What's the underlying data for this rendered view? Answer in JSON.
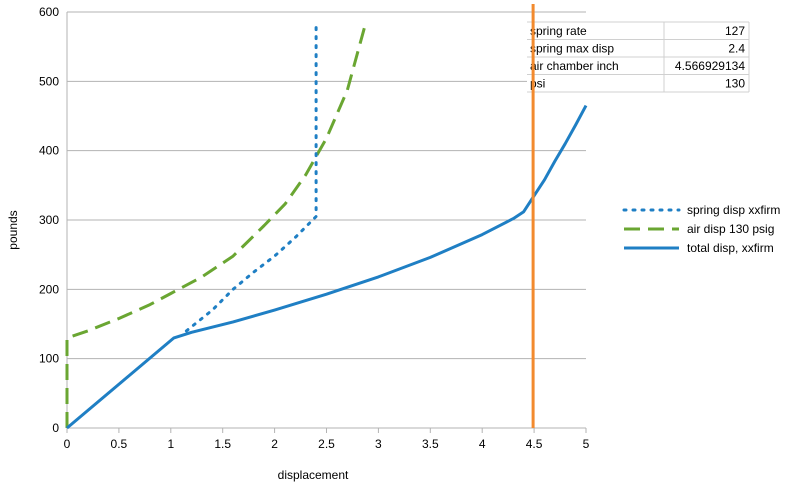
{
  "chart_data": {
    "type": "line",
    "title": "",
    "xlabel": "displacement",
    "ylabel": "pounds",
    "xlim": [
      0,
      5
    ],
    "ylim": [
      0,
      600
    ],
    "x_ticks": [
      "0",
      "0.5",
      "1",
      "1.5",
      "2",
      "2.5",
      "3",
      "3.5",
      "4",
      "4.5",
      "5"
    ],
    "y_ticks": [
      "0",
      "100",
      "200",
      "300",
      "400",
      "500",
      "600"
    ],
    "grid": "horizontal",
    "legend_position": "right",
    "series": [
      {
        "name": "spring disp xxfirm",
        "color": "#1f7fc4",
        "style": "dotted",
        "points": [
          [
            1.15,
            140
          ],
          [
            1.4,
            170
          ],
          [
            1.6,
            200
          ],
          [
            1.8,
            225
          ],
          [
            2.0,
            248
          ],
          [
            2.2,
            275
          ],
          [
            2.4,
            305
          ],
          [
            2.4,
            350
          ],
          [
            2.4,
            400
          ],
          [
            2.4,
            450
          ],
          [
            2.4,
            500
          ],
          [
            2.4,
            580
          ]
        ]
      },
      {
        "name": "air disp 130 psig",
        "color": "#6aa632",
        "style": "dashed",
        "points": [
          [
            0,
            0
          ],
          [
            0,
            30
          ],
          [
            0,
            60
          ],
          [
            0,
            90
          ],
          [
            0,
            130
          ],
          [
            0.2,
            140
          ],
          [
            0.5,
            158
          ],
          [
            0.8,
            178
          ],
          [
            1.0,
            194
          ],
          [
            1.3,
            218
          ],
          [
            1.6,
            248
          ],
          [
            1.9,
            292
          ],
          [
            2.1,
            323
          ],
          [
            2.3,
            365
          ],
          [
            2.5,
            418
          ],
          [
            2.7,
            487
          ],
          [
            2.87,
            580
          ]
        ]
      },
      {
        "name": "total disp, xxfirm",
        "color": "#1f7fc4",
        "style": "solid",
        "points": [
          [
            0,
            0
          ],
          [
            1.03,
            130
          ],
          [
            1.2,
            138
          ],
          [
            1.6,
            153
          ],
          [
            2.0,
            170
          ],
          [
            2.5,
            193
          ],
          [
            3.0,
            218
          ],
          [
            3.5,
            246
          ],
          [
            4.0,
            279
          ],
          [
            4.3,
            302
          ],
          [
            4.4,
            312
          ],
          [
            4.5,
            335
          ],
          [
            4.6,
            358
          ],
          [
            4.7,
            385
          ],
          [
            4.8,
            410
          ],
          [
            4.9,
            437
          ],
          [
            5.0,
            465
          ]
        ]
      }
    ],
    "reference_line": {
      "x": 4.5,
      "color": "#f28a2e"
    },
    "overlay_table": [
      {
        "label": "spring rate",
        "value": "127"
      },
      {
        "label": "spring max disp",
        "value": "2.4"
      },
      {
        "label": "air chamber inch",
        "value": "4.566929134"
      },
      {
        "label": "psi",
        "value": "130"
      }
    ]
  }
}
